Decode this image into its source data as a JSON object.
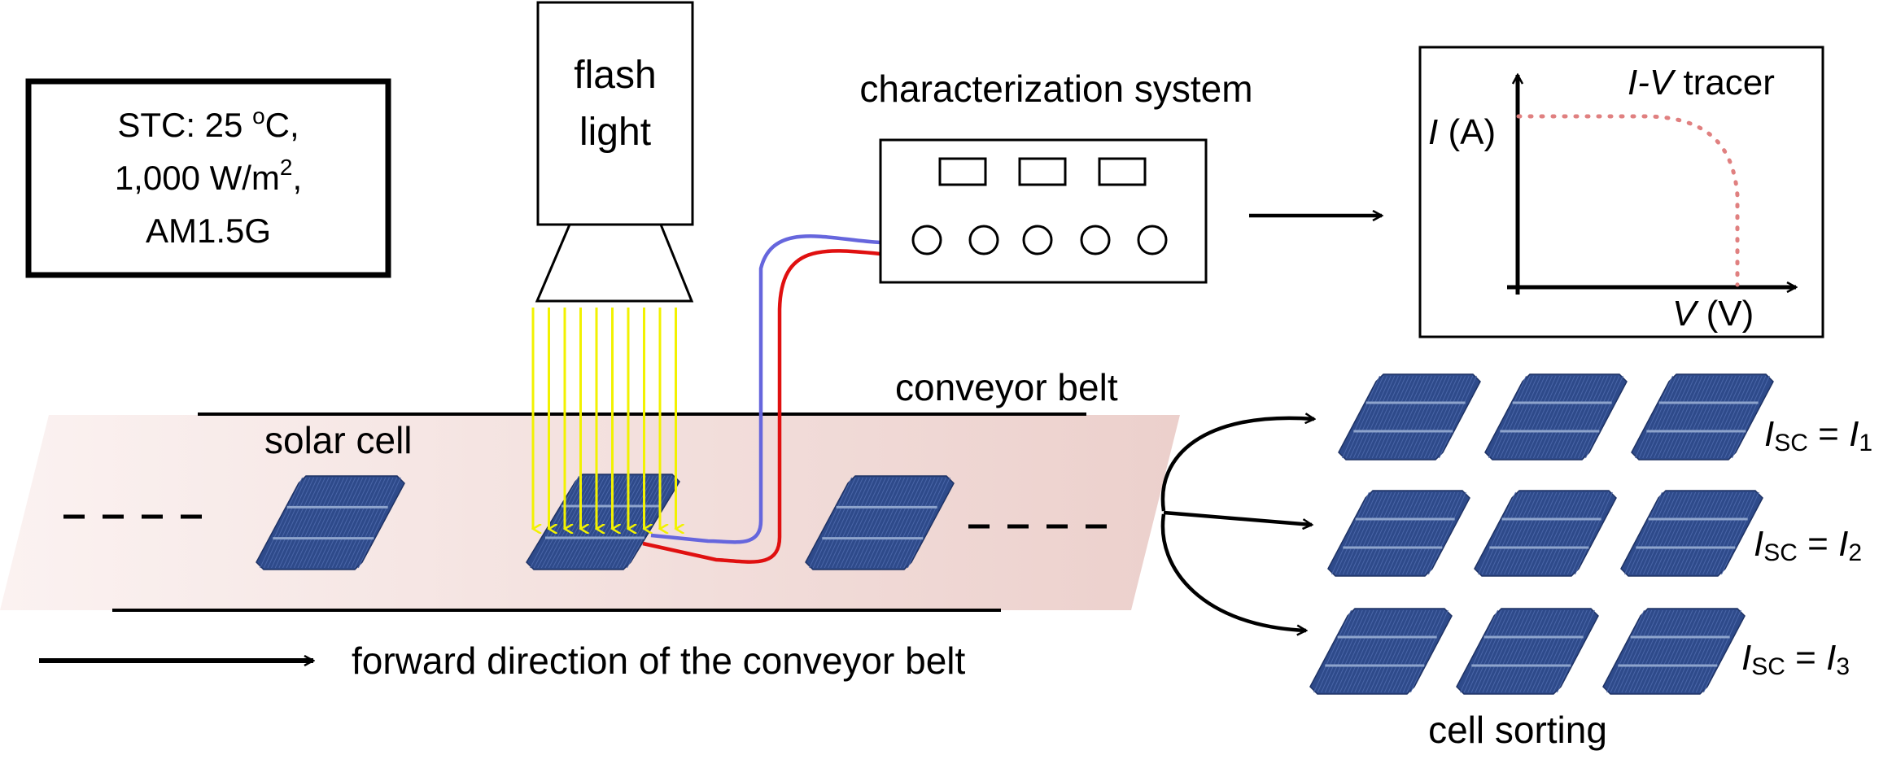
{
  "stc_box": {
    "line1_prefix": "STC: 25 ",
    "line1_degree": "o",
    "line1_suffix": "C,",
    "line2_prefix": "1,000 W/m",
    "line2_sup": "2",
    "line2_suffix": ",",
    "line3": "AM1.5G"
  },
  "flash_light": {
    "line1": "flash",
    "line2": "light"
  },
  "characterization": {
    "label": "characterization system"
  },
  "iv_tracer": {
    "title_italic": "I-V",
    "title_rest": " tracer",
    "y_label_italic": "I",
    "y_label_rest": " (A)",
    "x_label_italic": "V",
    "x_label_rest": " (V)"
  },
  "belt": {
    "conveyor_label": "conveyor belt",
    "solar_cell_label": "solar cell",
    "direction_label": "forward direction of the conveyor belt"
  },
  "sorting": {
    "label": "cell sorting",
    "rows": [
      {
        "symbol": "I",
        "sub": "SC",
        "eq": " = ",
        "rhs": "I",
        "rhs_sub": "1"
      },
      {
        "symbol": "I",
        "sub": "SC",
        "eq": " = ",
        "rhs": "I",
        "rhs_sub": "2"
      },
      {
        "symbol": "I",
        "sub": "SC",
        "eq": " = ",
        "rhs": "I",
        "rhs_sub": "3"
      }
    ]
  },
  "colors": {
    "cell_fill": "#2e4a8a",
    "cell_line": "#8ea4cc",
    "belt_tint": "#e8c8c4",
    "light_rays": "#f2f200",
    "wire_blue": "#6666dd",
    "wire_red": "#e01010",
    "iv_curve": "#e08080"
  }
}
